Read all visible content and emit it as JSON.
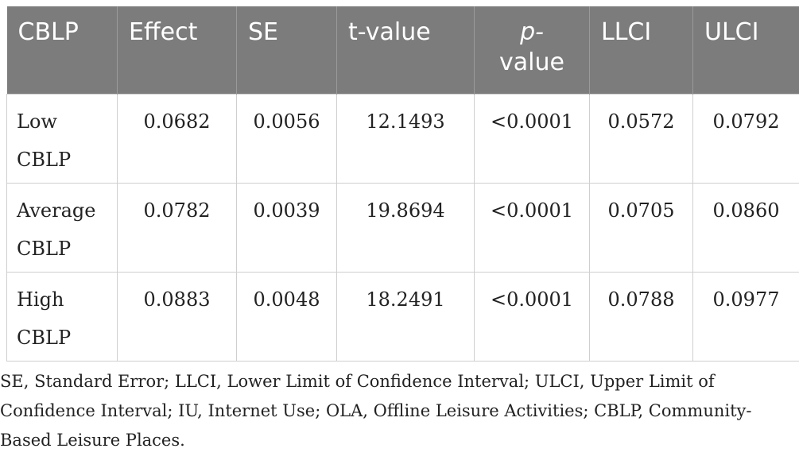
{
  "table": {
    "headers": [
      "CBLP",
      "Effect",
      "SE",
      "t-value",
      "p-",
      "value",
      "LLCI",
      "ULCI"
    ],
    "rows": [
      [
        "Low",
        "CBLP",
        "0.0682",
        "0.0056",
        "12.1493",
        "<0.0001",
        "0.0572",
        "0.0792"
      ],
      [
        "Average",
        "CBLP",
        "0.0782",
        "0.0039",
        "19.8694",
        "<0.0001",
        "0.0705",
        "0.0860"
      ],
      [
        "High",
        "CBLP",
        "0.0883",
        "0.0048",
        "18.2491",
        "<0.0001",
        "0.0788",
        "0.0977"
      ]
    ],
    "header_bg": "#7c7c7c"
  },
  "footnote": {
    "line1": "SE, Standard Error; LLCI, Lower Limit of Confidence Interval; ULCI, Upper Limit of",
    "line2": "Confidence Interval; IU, Internet Use; OLA, Offline Leisure Activities; CBLP, Community-",
    "line3": "Based Leisure Places."
  }
}
